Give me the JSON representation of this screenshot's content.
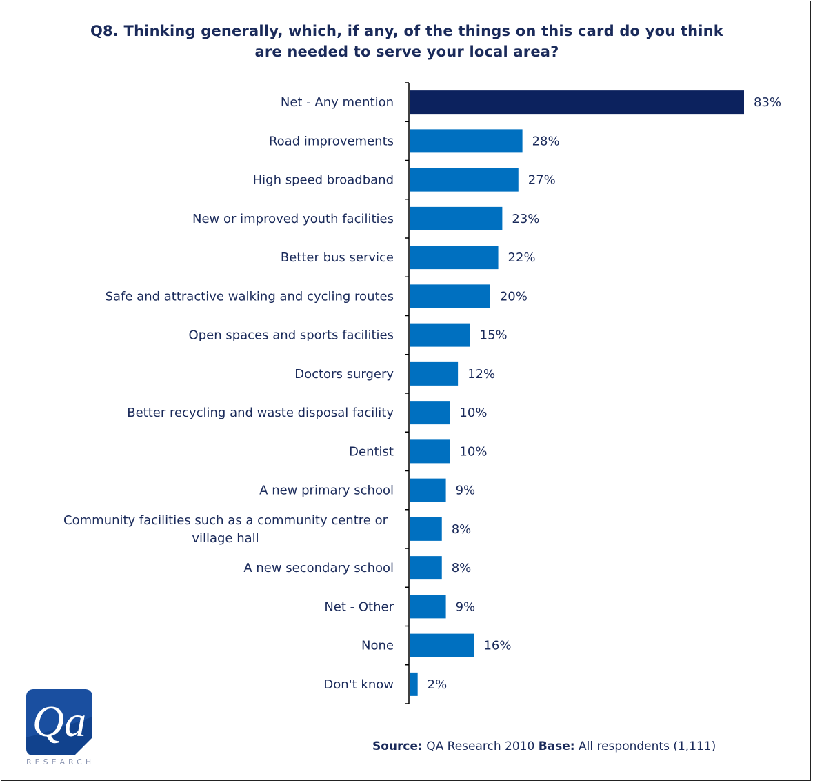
{
  "title_line1": "Q8. Thinking generally, which, if any, of the things on this card do you think",
  "title_line2": "are needed to serve your local area?",
  "source": {
    "source_label": "Source:",
    "source_text": "QA Research 2010",
    "base_label": "Base:",
    "base_text": "All respondents (1,111)"
  },
  "logo": {
    "text": "Qa",
    "subtext": "RESEARCH"
  },
  "colors": {
    "highlight": "#0c225e",
    "bar": "#0070c0",
    "text": "#1a2a5a"
  },
  "chart_data": {
    "type": "bar",
    "orientation": "horizontal",
    "categories": [
      "Net - Any mention",
      "Road improvements",
      "High speed broadband",
      "New or improved youth facilities",
      "Better bus service",
      "Safe and attractive walking and cycling routes",
      "Open spaces and sports facilities",
      "Doctors surgery",
      "Better recycling and waste disposal facility",
      "Dentist",
      "A new primary school",
      "Community facilities such as a community centre or village hall",
      "A new secondary school",
      "Net - Other",
      "None",
      "Don't know"
    ],
    "category_lines": [
      [
        "Net - Any mention"
      ],
      [
        "Road improvements"
      ],
      [
        "High speed broadband"
      ],
      [
        "New or improved youth facilities"
      ],
      [
        "Better bus service"
      ],
      [
        "Safe and attractive walking and cycling routes"
      ],
      [
        "Open spaces and sports facilities"
      ],
      [
        "Doctors surgery"
      ],
      [
        "Better recycling and waste disposal facility"
      ],
      [
        "Dentist"
      ],
      [
        "A new primary school"
      ],
      [
        "Community facilities such as a community centre or",
        "village hall"
      ],
      [
        "A new secondary school"
      ],
      [
        "Net - Other"
      ],
      [
        "None"
      ],
      [
        "Don't know"
      ]
    ],
    "values": [
      83,
      28,
      27,
      23,
      22,
      20,
      15,
      12,
      10,
      10,
      9,
      8,
      8,
      9,
      16,
      2
    ],
    "value_labels": [
      "83%",
      "28%",
      "27%",
      "23%",
      "22%",
      "20%",
      "15%",
      "12%",
      "10%",
      "10%",
      "9%",
      "8%",
      "8%",
      "9%",
      "16%",
      "2%"
    ],
    "highlight_index": 0,
    "xlim": [
      0,
      100
    ],
    "unit": "%"
  }
}
